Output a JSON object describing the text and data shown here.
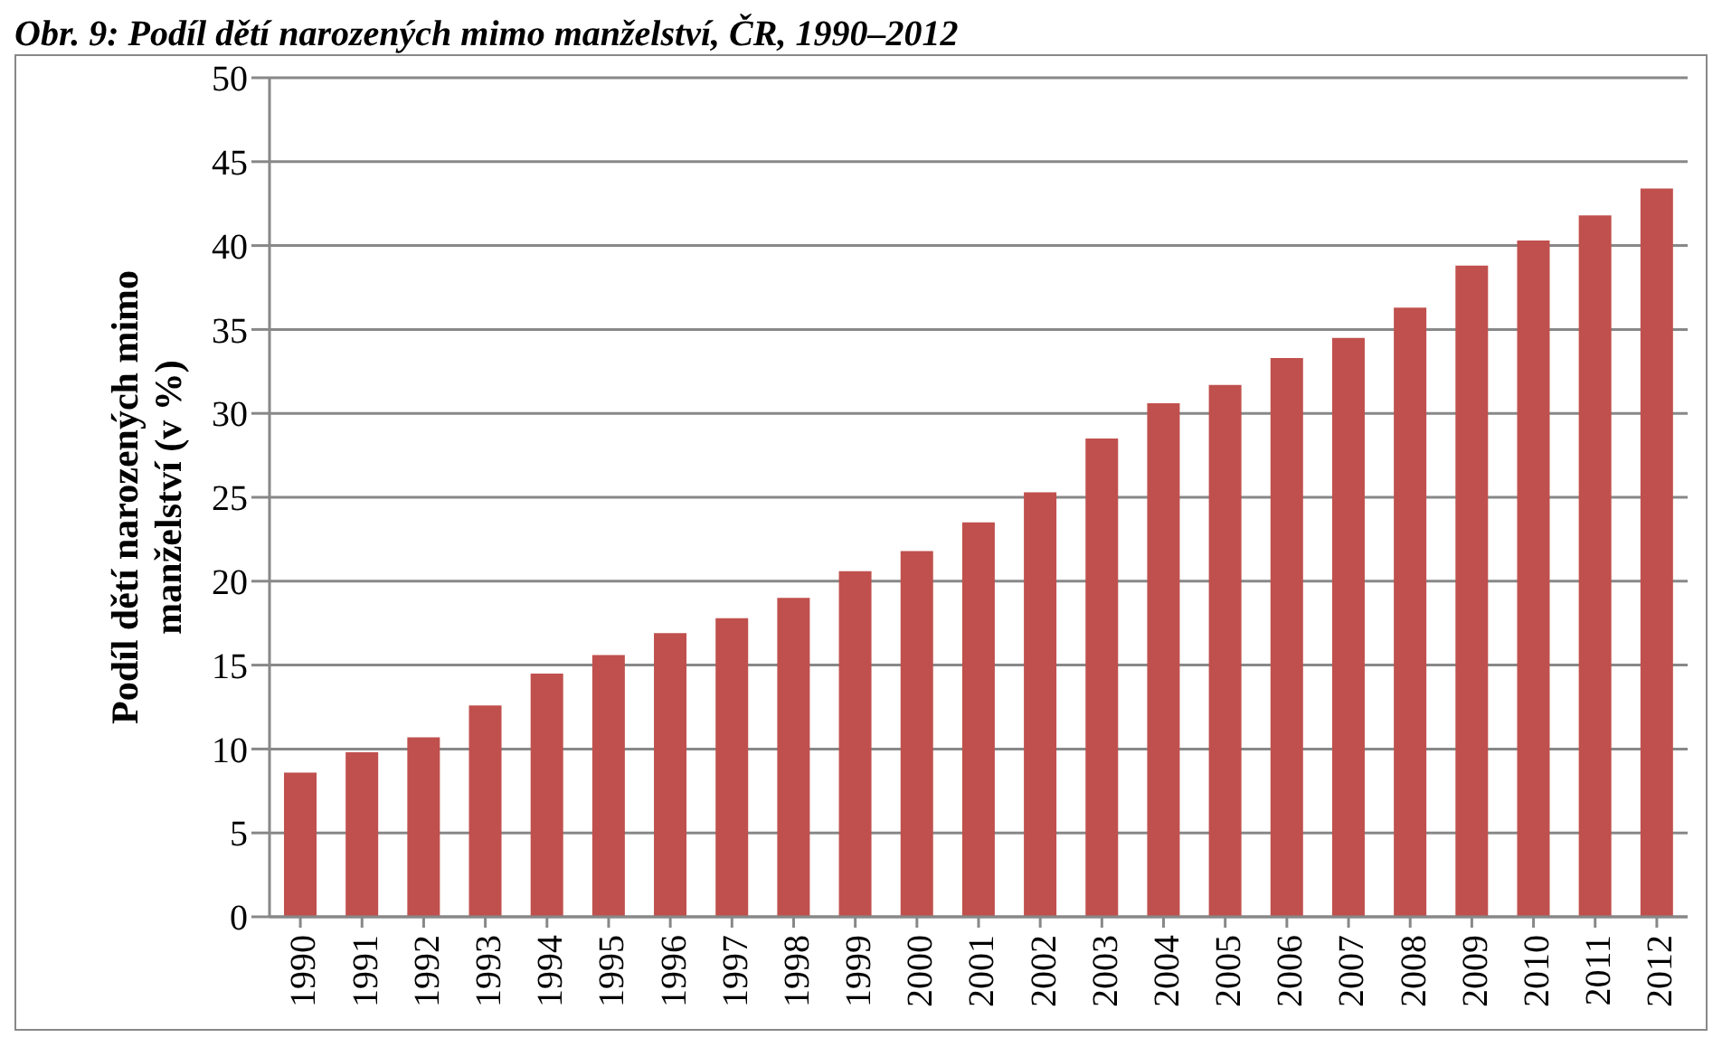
{
  "chart_data": {
    "type": "bar",
    "title": "Obr. 9: Podíl dětí narozených mimo manželství, ČR, 1990–2012",
    "ylabel": "Podíl dětí narozených mimo manželství (v %)",
    "categories": [
      "1990",
      "1991",
      "1992",
      "1993",
      "1994",
      "1995",
      "1996",
      "1997",
      "1998",
      "1999",
      "2000",
      "2001",
      "2002",
      "2003",
      "2004",
      "2005",
      "2006",
      "2007",
      "2008",
      "2009",
      "2010",
      "2011",
      "2012"
    ],
    "values": [
      8.6,
      9.8,
      10.7,
      12.6,
      14.5,
      15.6,
      16.9,
      17.8,
      19.0,
      20.6,
      21.8,
      23.5,
      25.3,
      28.5,
      30.6,
      31.7,
      33.3,
      34.5,
      36.3,
      38.8,
      40.3,
      41.8,
      43.4
    ],
    "color": "#c0504d",
    "ylim": [
      0,
      50
    ],
    "yticks": [
      0,
      5,
      10,
      15,
      20,
      25,
      30,
      35,
      40,
      45,
      50
    ],
    "grid": "y"
  }
}
